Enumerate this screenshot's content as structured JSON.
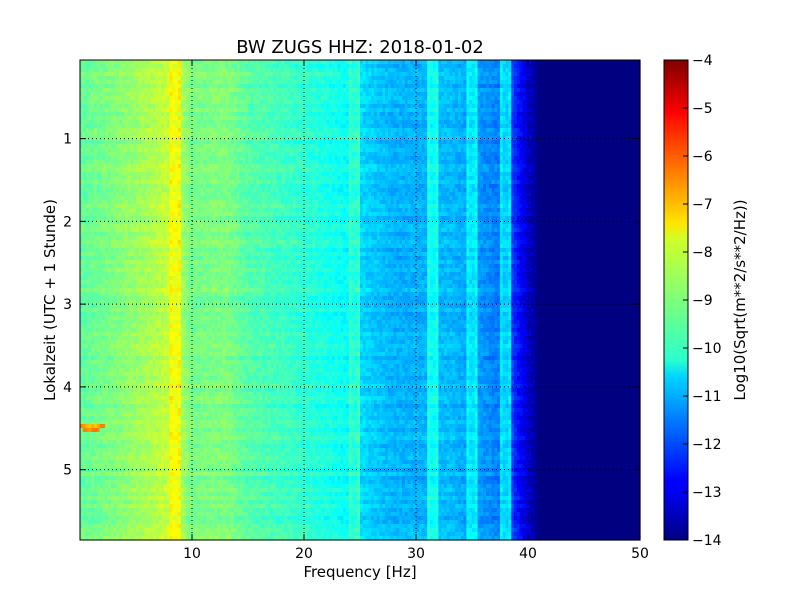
{
  "chart_data": {
    "type": "heatmap",
    "title": "BW ZUGS HHZ: 2018-01-02",
    "xlabel": "Frequency [Hz]",
    "ylabel": "Lokalzeit (UTC + 1 Stunde)",
    "xlim": [
      0,
      50
    ],
    "ylim": [
      5.85,
      0.05
    ],
    "x_ticks": [
      10,
      20,
      30,
      40,
      50
    ],
    "y_ticks": [
      1,
      2,
      3,
      4,
      5
    ],
    "grid": true,
    "colorbar": {
      "label": "Log10(Sqrt(m**2/s**2/Hz))",
      "range": [
        -14,
        -4
      ],
      "ticks": [
        -4,
        -5,
        -6,
        -7,
        -8,
        -9,
        -10,
        -11,
        -12,
        -13,
        -14
      ],
      "colormap": "jet"
    },
    "frequency_profile": [
      {
        "x": 0,
        "value": -9.3
      },
      {
        "x": 3,
        "value": -9.0
      },
      {
        "x": 6,
        "value": -8.6
      },
      {
        "x": 8,
        "value": -8.3
      },
      {
        "x": 9,
        "value": -8.6
      },
      {
        "x": 10,
        "value": -9.1
      },
      {
        "x": 13,
        "value": -9.0
      },
      {
        "x": 15,
        "value": -9.4
      },
      {
        "x": 20,
        "value": -9.8
      },
      {
        "x": 24,
        "value": -10.2
      },
      {
        "x": 25,
        "value": -10.6
      },
      {
        "x": 28,
        "value": -11.0
      },
      {
        "x": 31,
        "value": -11.0
      },
      {
        "x": 33,
        "value": -10.9
      },
      {
        "x": 36,
        "value": -11.3
      },
      {
        "x": 38,
        "value": -11.6
      },
      {
        "x": 39,
        "value": -12.5
      },
      {
        "x": 40,
        "value": -13.2
      },
      {
        "x": 41,
        "value": -14
      },
      {
        "x": 50,
        "value": -14
      }
    ],
    "features": [
      {
        "x": 8.5,
        "value": -8.0
      },
      {
        "x": 24.5,
        "value": -10.0
      },
      {
        "x": 31.5,
        "value": -10.3
      },
      {
        "x": 35,
        "value": -10.6
      },
      {
        "x": 38,
        "value": -10.8
      },
      {
        "x": 1,
        "y": 4.48,
        "value": -7.5
      }
    ]
  }
}
